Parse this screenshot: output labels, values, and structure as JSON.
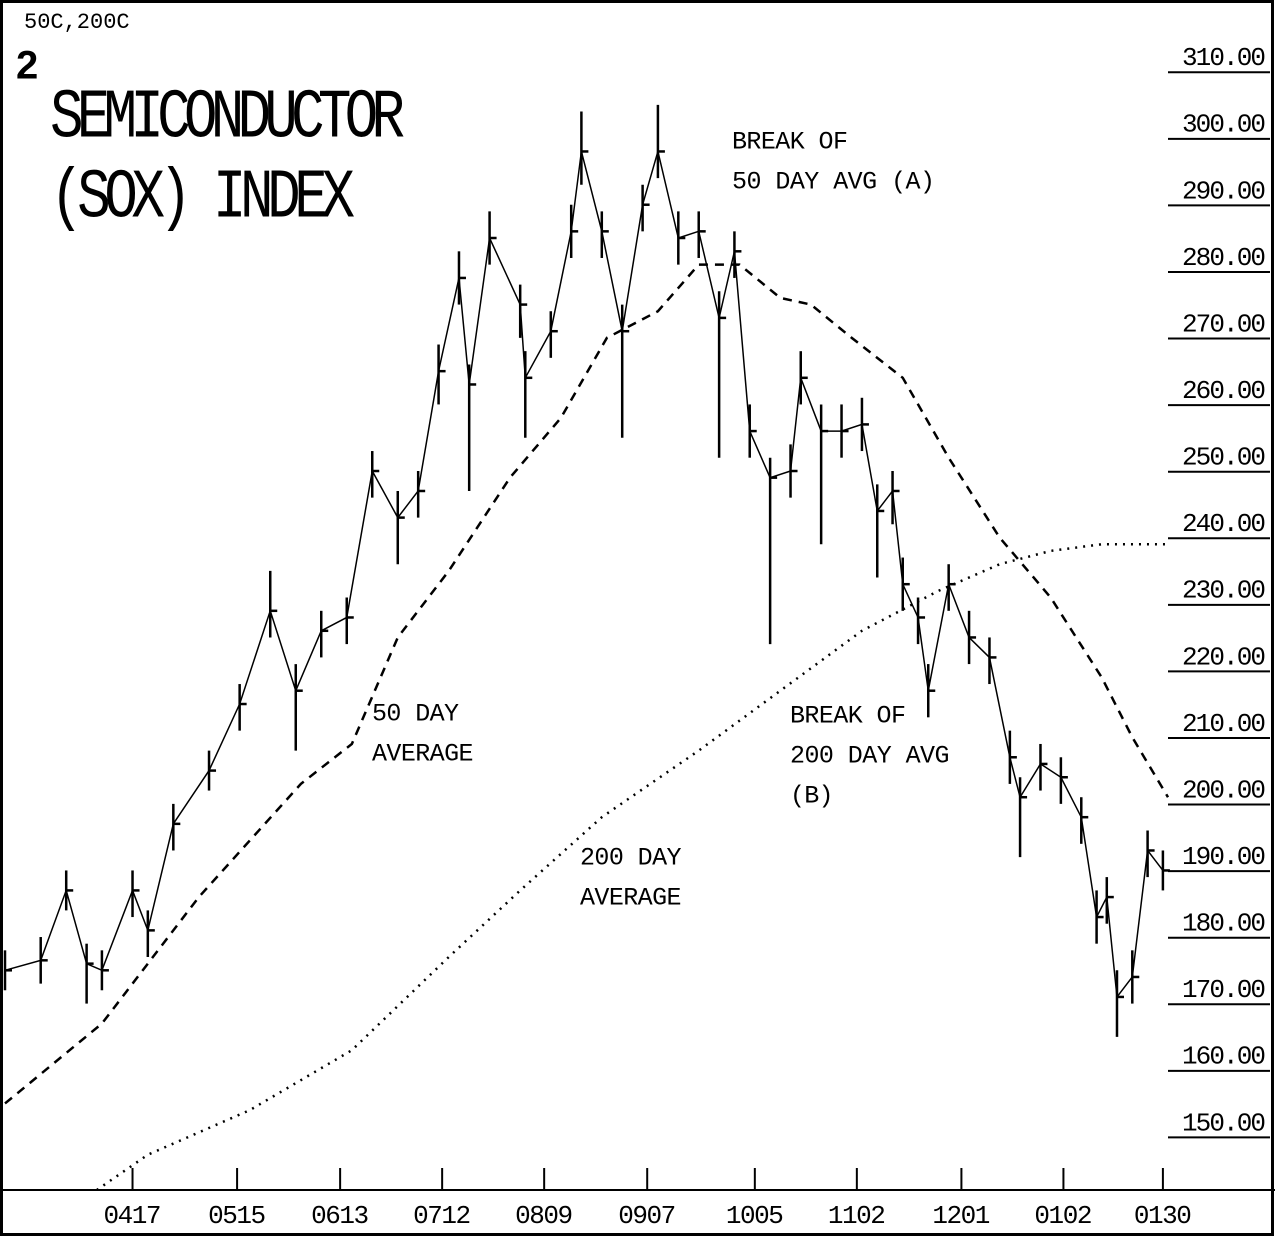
{
  "chart_data": {
    "type": "ohlc",
    "corner_label": "50C,200C",
    "figure_number": "2",
    "title": [
      "SEMICONDUCTOR",
      "(SOX) INDEX"
    ],
    "annotations": [
      [
        "BREAK OF",
        "50 DAY AVG (A)"
      ],
      [
        "50 DAY",
        "AVERAGE"
      ],
      [
        "BREAK OF",
        "200 DAY AVG",
        "(B)"
      ],
      [
        "200 DAY",
        "AVERAGE"
      ]
    ],
    "xlim": [
      0,
      228
    ],
    "xticks": [
      {
        "value": 25,
        "label": "0417"
      },
      {
        "value": 45.5,
        "label": "0515"
      },
      {
        "value": 65.7,
        "label": "0613"
      },
      {
        "value": 85.7,
        "label": "0712"
      },
      {
        "value": 105.7,
        "label": "0809"
      },
      {
        "value": 125.9,
        "label": "0907"
      },
      {
        "value": 147,
        "label": "1005"
      },
      {
        "value": 167,
        "label": "1102"
      },
      {
        "value": 187.5,
        "label": "1201"
      },
      {
        "value": 207.5,
        "label": "0102"
      },
      {
        "value": 227,
        "label": "0130"
      }
    ],
    "ylim": [
      140,
      318
    ],
    "yticks": [
      {
        "value": 150,
        "label": "150.00"
      },
      {
        "value": 160,
        "label": "160.00"
      },
      {
        "value": 170,
        "label": "170.00"
      },
      {
        "value": 180,
        "label": "180.00"
      },
      {
        "value": 190,
        "label": "190.00"
      },
      {
        "value": 200,
        "label": "200.00"
      },
      {
        "value": 210,
        "label": "210.00"
      },
      {
        "value": 220,
        "label": "220.00"
      },
      {
        "value": 230,
        "label": "230.00"
      },
      {
        "value": 240,
        "label": "240.00"
      },
      {
        "value": 250,
        "label": "250.00"
      },
      {
        "value": 260,
        "label": "260.00"
      },
      {
        "value": 270,
        "label": "270.00"
      },
      {
        "value": 280,
        "label": "280.00"
      },
      {
        "value": 290,
        "label": "290.00"
      },
      {
        "value": 300,
        "label": "300.00"
      },
      {
        "value": 310,
        "label": "310.00"
      }
    ],
    "price": {
      "color": "#000000",
      "x": [
        0,
        7,
        12,
        16,
        19,
        25,
        28,
        33,
        40,
        46,
        52,
        57,
        62,
        67,
        72,
        77,
        81,
        85,
        89,
        91,
        95,
        101,
        102,
        107,
        111,
        113,
        117,
        121,
        125,
        128,
        132,
        136,
        140,
        143,
        146,
        150,
        154,
        156,
        160,
        164,
        168,
        171,
        174,
        176,
        179,
        181,
        185,
        189,
        193,
        197,
        199,
        203,
        207,
        211,
        214,
        216,
        218,
        221,
        224,
        227
      ],
      "values": [
        173,
        174.5,
        185,
        174,
        173,
        185,
        179,
        195,
        203,
        213,
        227,
        215,
        224,
        226,
        248,
        241,
        245,
        263,
        277,
        261,
        283,
        273,
        262,
        269,
        284,
        296,
        284,
        269,
        288,
        296,
        283,
        284,
        271,
        281,
        254,
        247,
        248,
        262,
        254,
        254,
        255,
        242,
        245,
        231,
        226,
        215,
        231,
        223,
        220,
        205,
        199,
        204,
        202,
        196,
        181,
        184,
        169,
        172,
        191,
        188
      ],
      "high": [
        176,
        178,
        188,
        177,
        176,
        188,
        182,
        198,
        206,
        216,
        233,
        219,
        227,
        229,
        251,
        245,
        248,
        267,
        281,
        264,
        287,
        276,
        266,
        272,
        288,
        302,
        287,
        273,
        291,
        303,
        287,
        287,
        275,
        284,
        258,
        250,
        252,
        266,
        258,
        258,
        259,
        246,
        248,
        235,
        229,
        219,
        234,
        227,
        223,
        209,
        202,
        207,
        205,
        199,
        185,
        187,
        173,
        176,
        194,
        191
      ],
      "low": [
        170,
        171,
        182,
        168,
        170,
        181,
        175,
        191,
        200,
        209,
        223,
        206,
        220,
        222,
        244,
        234,
        241,
        258,
        273,
        245,
        279,
        268,
        253,
        265,
        280,
        291,
        280,
        253,
        284,
        292,
        279,
        280,
        250,
        277,
        250,
        222,
        244,
        258,
        237,
        250,
        251,
        232,
        240,
        227,
        222,
        211,
        227,
        219,
        216,
        201,
        190,
        200,
        198,
        192,
        177,
        180,
        163,
        168,
        187,
        185
      ]
    },
    "series": [
      {
        "color": "#000000",
        "dash": "9 7",
        "x": [
          0,
          19,
          38,
          58,
          68,
          77,
          87,
          99,
          109,
          118,
          128,
          136,
          144,
          152,
          158,
          166,
          176,
          185,
          195,
          205,
          215,
          221,
          228
        ],
        "values": [
          153,
          165,
          184,
          201,
          207,
          223,
          233,
          247,
          256,
          268,
          272,
          279,
          279,
          274,
          273,
          268,
          262,
          250,
          238,
          229,
          217,
          208,
          199
        ]
      },
      {
        "color": "#000000",
        "dash": "2 6",
        "x": [
          18,
          28,
          48,
          68,
          87,
          101,
          117,
          136,
          152,
          168,
          183,
          195,
          205,
          215,
          228
        ],
        "values": [
          140,
          145.3,
          152,
          161,
          175,
          185,
          196,
          206,
          215,
          224,
          230,
          234,
          236,
          237,
          237
        ]
      }
    ]
  }
}
